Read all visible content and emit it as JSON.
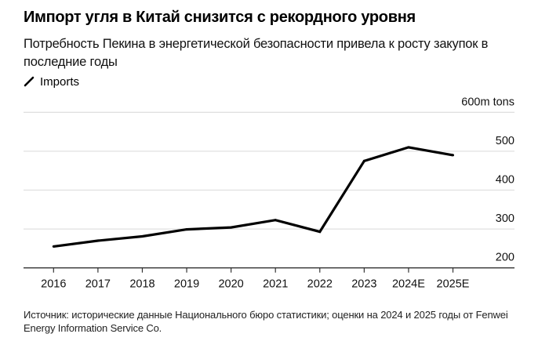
{
  "header": {
    "title": "Импорт угля в Китай снизится с рекордного уровня",
    "subtitle": "Потребность Пекина в энергетической безопасности привела к росту закупок в последние годы"
  },
  "legend": {
    "icon": "line-slash-icon",
    "label": "Imports"
  },
  "footer": {
    "source": "Источник: исторические данные Национального бюро статистики; оценки на 2024 и 2025 годы от Fenwei Energy Information Service Co."
  },
  "colors": {
    "line": "#000000",
    "grid": "#e0e0e0",
    "axis": "#333333"
  },
  "chart_data": {
    "type": "line",
    "title": "Импорт угля в Китай снизится с рекордного уровня",
    "xlabel": "",
    "ylabel": "",
    "y_unit_label": "600m tons",
    "categories": [
      "2016",
      "2017",
      "2018",
      "2019",
      "2020",
      "2021",
      "2022",
      "2023",
      "2024E",
      "2025E"
    ],
    "series": [
      {
        "name": "Imports",
        "values": [
          255,
          270,
          281,
          299,
          304,
          323,
          293,
          475,
          510,
          490
        ]
      }
    ],
    "ylim": [
      200,
      600
    ],
    "yticks": [
      {
        "value": 600,
        "label": "600m tons"
      },
      {
        "value": 500,
        "label": "500"
      },
      {
        "value": 400,
        "label": "400"
      },
      {
        "value": 300,
        "label": "300"
      },
      {
        "value": 200,
        "label": "200"
      }
    ],
    "grid": true,
    "legend_position": "top-left"
  }
}
